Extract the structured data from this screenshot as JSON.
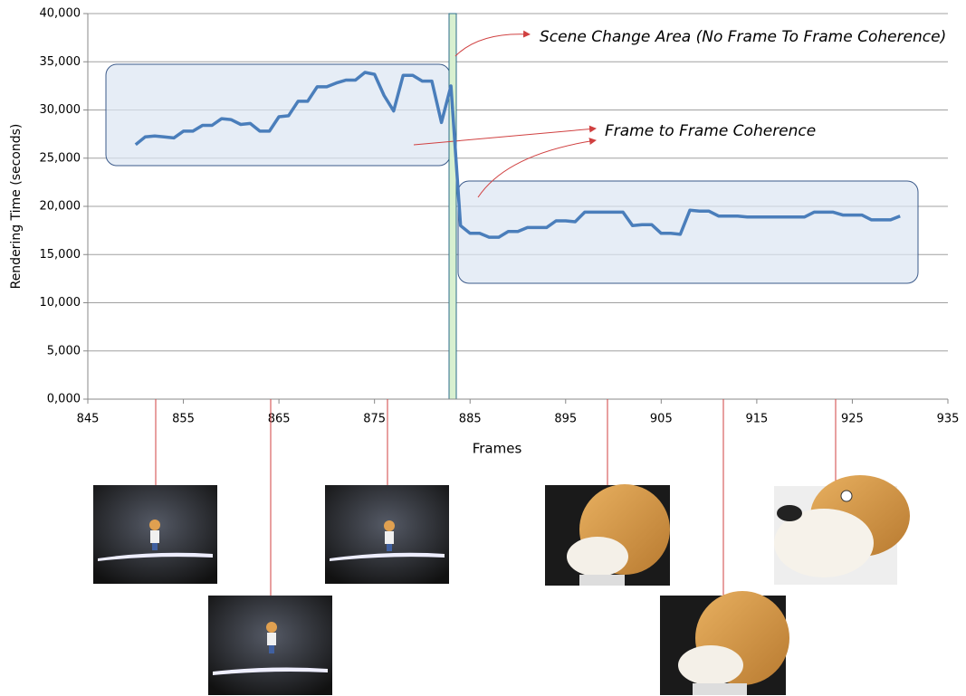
{
  "chart_data": {
    "type": "line",
    "xlabel": "Frames",
    "ylabel": "Rendering Time (seconds)",
    "annotations": [
      "Scene Change Area (No Frame To Frame Coherence)",
      "Frame to Frame Coherence"
    ],
    "color": "#4a7ebb",
    "x": [
      850,
      851,
      852,
      853,
      854,
      855,
      856,
      857,
      858,
      859,
      860,
      861,
      862,
      863,
      864,
      865,
      866,
      867,
      868,
      869,
      870,
      871,
      872,
      873,
      874,
      875,
      876,
      877,
      878,
      879,
      880,
      881,
      882,
      883,
      884,
      885,
      886,
      887,
      888,
      889,
      890,
      891,
      892,
      893,
      894,
      895,
      896,
      897,
      898,
      899,
      900,
      901,
      902,
      903,
      904,
      905,
      906,
      907,
      908,
      909,
      910,
      911,
      912,
      913,
      914,
      915,
      916,
      917,
      918,
      919,
      920,
      921,
      922,
      923,
      924,
      925,
      926,
      927,
      928,
      929,
      930
    ],
    "values": [
      26400,
      27200,
      27300,
      27200,
      27100,
      27800,
      27800,
      28400,
      28400,
      29100,
      29000,
      28500,
      28600,
      27800,
      27800,
      29300,
      29400,
      30900,
      30900,
      32400,
      32400,
      32800,
      33100,
      33100,
      33900,
      33700,
      31500,
      29900,
      33600,
      33600,
      33000,
      33000,
      28700,
      32500,
      18000,
      17200,
      17200,
      16800,
      16800,
      17400,
      17400,
      17800,
      17800,
      17800,
      18500,
      18500,
      18400,
      19400,
      19400,
      19400,
      19400,
      19400,
      18000,
      18100,
      18100,
      17200,
      17200,
      17100,
      19600,
      19500,
      19500,
      19000,
      19000,
      19000,
      18900,
      18900,
      18900,
      18900,
      18900,
      18900,
      18900,
      19400,
      19400,
      19400,
      19100,
      19100,
      19100,
      18600,
      18600,
      18600,
      19000
    ],
    "xlim": [
      845,
      935
    ],
    "xticks": [
      845,
      855,
      865,
      875,
      885,
      895,
      905,
      915,
      925,
      935
    ],
    "ylim": [
      0,
      40000
    ],
    "yticks": [
      {
        "value": 0,
        "label": "0,000"
      },
      {
        "value": 5000,
        "label": "5,000"
      },
      {
        "value": 10000,
        "label": "10,000"
      },
      {
        "value": 15000,
        "label": "15,000"
      },
      {
        "value": 20000,
        "label": "20,000"
      },
      {
        "value": 25000,
        "label": "25,000"
      },
      {
        "value": 30000,
        "label": "30,000"
      },
      {
        "value": 35000,
        "label": "35,000"
      },
      {
        "value": 40000,
        "label": "40,000"
      }
    ],
    "grid": true
  }
}
